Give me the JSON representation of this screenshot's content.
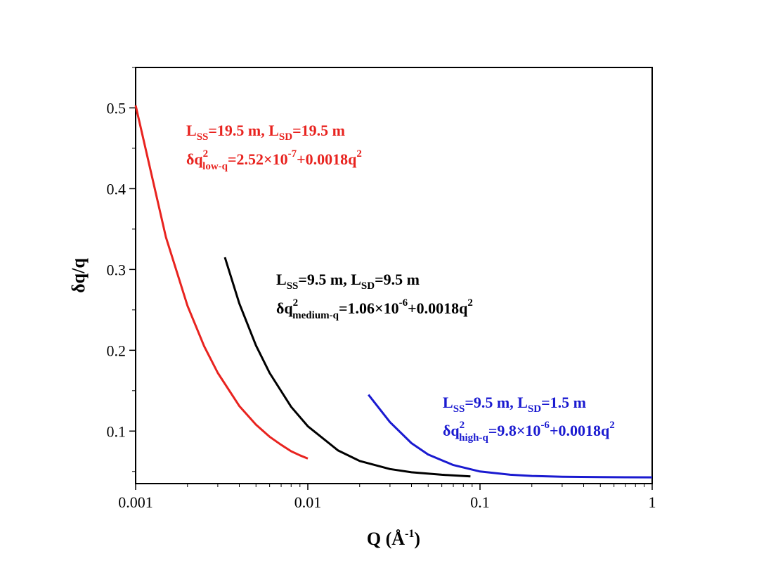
{
  "chart_data": {
    "type": "line",
    "xlabel": "Q (Å",
    "xlabel_sup": "-1",
    "xlabel_close": ")",
    "ylabel": "δq/q",
    "x_scale": "log",
    "xlim": [
      0.001,
      1
    ],
    "ylim": [
      0.035,
      0.55
    ],
    "x_ticks": [
      {
        "value": 0.001,
        "label": "0.001"
      },
      {
        "value": 0.01,
        "label": "0.01"
      },
      {
        "value": 0.1,
        "label": "0.1"
      },
      {
        "value": 1,
        "label": "1"
      }
    ],
    "y_ticks": [
      {
        "value": 0.1,
        "label": "0.1"
      },
      {
        "value": 0.2,
        "label": "0.2"
      },
      {
        "value": 0.3,
        "label": "0.3"
      },
      {
        "value": 0.4,
        "label": "0.4"
      },
      {
        "value": 0.5,
        "label": "0.5"
      }
    ],
    "grid": false,
    "series": [
      {
        "color": "#e8231f",
        "x": [
          0.001,
          0.0015,
          0.002,
          0.0025,
          0.003,
          0.004,
          0.005,
          0.006,
          0.007,
          0.008,
          0.009,
          0.01
        ],
        "y": [
          0.503,
          0.34,
          0.255,
          0.205,
          0.172,
          0.131,
          0.108,
          0.093,
          0.083,
          0.075,
          0.07,
          0.066
        ],
        "annotation": {
          "line1": {
            "L": "L",
            "sub1": "SS",
            "mid": "=19.5 m, L",
            "sub2": "SD",
            "end": "=19.5 m"
          },
          "line2": {
            "pre": "δq",
            "sup": "2",
            "sub": "low-q",
            "eq": "=2.52×10",
            "exp": "-7",
            "post": "+0.0018q",
            "sup2": "2"
          }
        }
      },
      {
        "color": "#000000",
        "x": [
          0.0033,
          0.004,
          0.005,
          0.006,
          0.008,
          0.01,
          0.015,
          0.02,
          0.03,
          0.04,
          0.06,
          0.088
        ],
        "y": [
          0.315,
          0.258,
          0.206,
          0.172,
          0.13,
          0.106,
          0.076,
          0.063,
          0.053,
          0.049,
          0.046,
          0.044
        ],
        "annotation": {
          "line1": {
            "L": "L",
            "sub1": "SS",
            "mid": "=9.5 m, L",
            "sub2": "SD",
            "end": "=9.5 m"
          },
          "line2": {
            "pre": "δq",
            "sup": "2",
            "sub": "medium-q",
            "eq": "=1.06×10",
            "exp": "-6",
            "post": "+0.0018q",
            "sup2": "2"
          }
        }
      },
      {
        "color": "#1a1ad0",
        "x": [
          0.0225,
          0.03,
          0.04,
          0.05,
          0.07,
          0.1,
          0.15,
          0.2,
          0.3,
          0.5,
          0.7,
          1.0
        ],
        "y": [
          0.145,
          0.111,
          0.085,
          0.071,
          0.058,
          0.05,
          0.046,
          0.0445,
          0.0435,
          0.043,
          0.0428,
          0.0427
        ],
        "annotation": {
          "line1": {
            "L": "L",
            "sub1": "SS",
            "mid": "=9.5 m, L",
            "sub2": "SD",
            "end": "=1.5 m"
          },
          "line2": {
            "pre": "δq",
            "sup": "2",
            "sub": "high-q",
            "eq": "=9.8×10",
            "exp": "-6",
            "post": "+0.0018q",
            "sup2": "2"
          }
        }
      }
    ]
  }
}
